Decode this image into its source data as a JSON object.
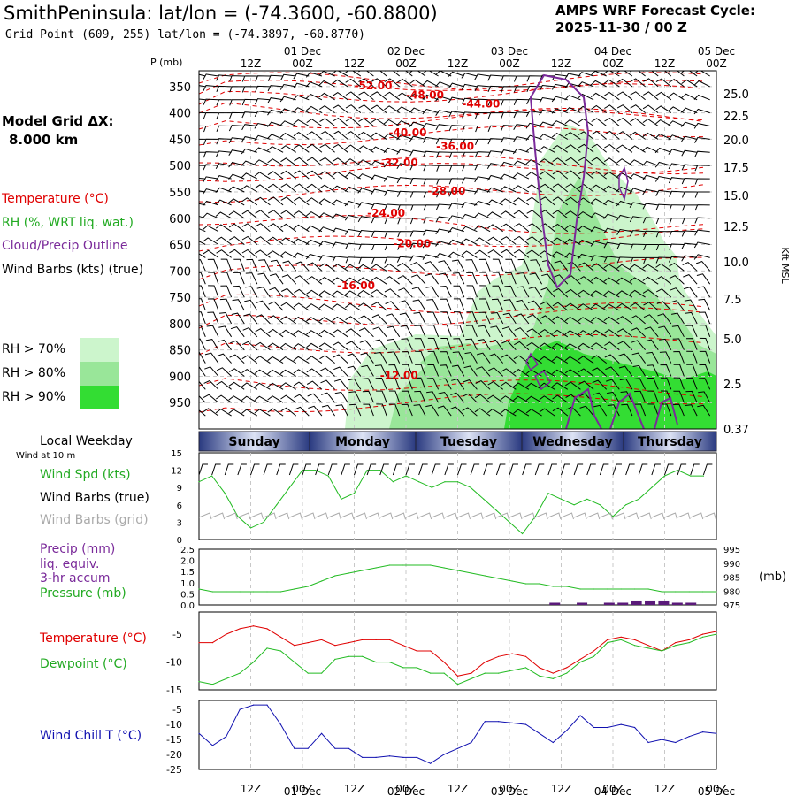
{
  "header": {
    "title": "SmithPeninsula:  lat/lon = (-74.3600, -60.8800)",
    "grid_point": "Grid Point (609, 255) lat/lon = (-74.3897, -60.8770)",
    "cycle_line1": "AMPS WRF Forecast Cycle:",
    "cycle_line2": "2025-11-30 / 00  Z",
    "model_grid": "Model Grid ΔX:",
    "model_dx": "8.000 km"
  },
  "legend": {
    "temperature": "Temperature (°C)",
    "rh": "RH (%, WRT liq. wat.)",
    "cloud": "Cloud/Precip Outline",
    "wind": "Wind Barbs (kts) (true)",
    "rh70": "RH > 70%",
    "rh80": "RH > 80%",
    "rh90": "RH > 90%",
    "local_weekday": "Local Weekday",
    "wind_10m": "Wind at 10 m",
    "wind_spd": "Wind Spd (kts)",
    "wind_barbs_true": "Wind Barbs (true)",
    "wind_barbs_grid": "Wind Barbs (grid)",
    "precip1": "Precip (mm)",
    "precip2": "liq. equiv.",
    "precip3": "3-hr accum",
    "pressure": "Pressure (mb)",
    "temp2": "Temperature (°C)",
    "dewpoint": "Dewpoint (°C)",
    "windchill": "Wind Chill T (°C)"
  },
  "colors": {
    "temperature": "#e00000",
    "rh": "#22aa22",
    "cloud": "#7a2a9a",
    "rh70": "#ccf5cc",
    "rh80": "#99e699",
    "rh90": "#33dd33",
    "windchill": "#1010b0",
    "grid_barb": "#aaaaaa",
    "pressure": "#22bb22",
    "precip": "#5a1a7a",
    "weekday_band": "#4a5aa0"
  },
  "time_axis": {
    "top_labels": [
      "12Z",
      "00Z",
      "12Z",
      "00Z",
      "12Z",
      "00Z",
      "12Z",
      "00Z",
      "12Z",
      "00Z"
    ],
    "top_dates": [
      "01 Dec",
      "02 Dec",
      "03 Dec",
      "04 Dec",
      "05 Dec"
    ],
    "weekdays": [
      "Sunday",
      "Monday",
      "Tuesday",
      "Wednesday",
      "Thursday"
    ]
  },
  "chart_data": [
    {
      "type": "heatmap",
      "title": "Vertical cross-section",
      "ylabel": "P (mb)",
      "y2label": "Kft MSL",
      "pressure_ticks": [
        350,
        400,
        450,
        500,
        550,
        600,
        650,
        700,
        750,
        800,
        850,
        900,
        950
      ],
      "height_ticks": [
        "25.0",
        "22.5",
        "20.0",
        "17.5",
        "15.0",
        "12.5",
        "10.0",
        "7.5",
        "5.0",
        "2.5",
        "0.37"
      ],
      "ylim": [
        1000,
        320
      ],
      "isotherm_labels": [
        {
          "text": "-52.00",
          "t": 36,
          "p": 355
        },
        {
          "text": "-48.00",
          "t": 48,
          "p": 373
        },
        {
          "text": "-44.00",
          "t": 61,
          "p": 390
        },
        {
          "text": "-40.00",
          "t": 44,
          "p": 444
        },
        {
          "text": "-36.00",
          "t": 55,
          "p": 470
        },
        {
          "text": "-32.00",
          "t": 42,
          "p": 501
        },
        {
          "text": "-28.00",
          "t": 53,
          "p": 555
        },
        {
          "text": "-24.00",
          "t": 39,
          "p": 597
        },
        {
          "text": "-20.00",
          "t": 45,
          "p": 655
        },
        {
          "text": "-16.00",
          "t": 32,
          "p": 735
        },
        {
          "text": "-12.00",
          "t": 42,
          "p": 905
        }
      ]
    },
    {
      "type": "line",
      "title": "Wind Speed (kts)",
      "yticks": [
        0,
        3,
        6,
        9,
        12,
        15
      ],
      "ylim": [
        0,
        15
      ],
      "x_hours_step": 3,
      "series": [
        {
          "name": "Wind Spd (kts)",
          "values": [
            10,
            11,
            8,
            4,
            2,
            3,
            6,
            9,
            12,
            12,
            11,
            7,
            8,
            12,
            12,
            10,
            11,
            10,
            9,
            10,
            10,
            9,
            7,
            5,
            3,
            1,
            4,
            8,
            7,
            6,
            7,
            6,
            4,
            6,
            7,
            9,
            11,
            12,
            11,
            11
          ]
        }
      ]
    },
    {
      "type": "line",
      "title": "Precip / Pressure",
      "left_ticks": [
        "2.5",
        "2.0",
        "1.5",
        "1.0",
        "0.5",
        "0.0"
      ],
      "right_ticks": [
        "995",
        "990",
        "985",
        "980",
        "975"
      ],
      "ylim_precip": [
        0,
        2.5
      ],
      "ylim_pressure": [
        975,
        996
      ],
      "series": [
        {
          "name": "Pressure (mb)",
          "values": [
            981,
            980,
            980,
            980,
            980,
            980,
            980,
            981,
            982,
            984,
            986,
            987,
            988,
            989,
            990,
            990,
            990,
            990,
            989,
            988,
            987,
            986,
            985,
            984,
            983,
            983,
            982,
            982,
            981,
            981,
            981,
            981,
            981,
            981,
            980,
            980,
            980,
            980,
            980
          ]
        },
        {
          "name": "Precip (mm)",
          "values": [
            0,
            0,
            0,
            0,
            0,
            0,
            0,
            0,
            0,
            0,
            0,
            0,
            0,
            0,
            0,
            0,
            0,
            0,
            0,
            0,
            0,
            0,
            0,
            0,
            0,
            0,
            0.1,
            0,
            0.1,
            0,
            0.1,
            0.1,
            0.2,
            0.2,
            0.2,
            0.1,
            0.1,
            0,
            0
          ]
        }
      ]
    },
    {
      "type": "line",
      "title": "Temperature / Dewpoint",
      "yticks": [
        -5,
        -10,
        -15
      ],
      "ylim": [
        -15,
        -1
      ],
      "series": [
        {
          "name": "Temperature (°C)",
          "values": [
            -6.5,
            -6.5,
            -5,
            -4,
            -3.5,
            -4,
            -5.5,
            -7,
            -6.5,
            -6,
            -7,
            -6.5,
            -6,
            -6,
            -6,
            -7,
            -8,
            -8,
            -10,
            -12.5,
            -12,
            -10,
            -9,
            -8.5,
            -9,
            -11,
            -12,
            -11,
            -9.5,
            -8,
            -6,
            -5.5,
            -6,
            -7,
            -8,
            -6.5,
            -6,
            -5,
            -4.5
          ]
        },
        {
          "name": "Dewpoint (°C)",
          "values": [
            -13.5,
            -14,
            -13,
            -12,
            -10,
            -7.5,
            -8,
            -10,
            -12,
            -12,
            -9.5,
            -9,
            -9,
            -10,
            -10,
            -11,
            -11,
            -12,
            -12,
            -14,
            -13,
            -12,
            -12,
            -11.5,
            -11,
            -12.5,
            -13,
            -12,
            -10,
            -9,
            -6.5,
            -6,
            -7,
            -7.5,
            -8,
            -7,
            -6.5,
            -5.5,
            -5
          ]
        }
      ]
    },
    {
      "type": "line",
      "title": "Wind Chill T (°C)",
      "yticks": [
        -5,
        -10,
        -15,
        -20,
        -25
      ],
      "ylim": [
        -25,
        -2
      ],
      "series": [
        {
          "name": "Wind Chill T (°C)",
          "values": [
            -13,
            -17,
            -14,
            -5,
            -3.5,
            -3.5,
            -10,
            -18,
            -18,
            -13,
            -18,
            -18,
            -21,
            -21,
            -20.5,
            -21,
            -21,
            -23,
            -20,
            -18,
            -16,
            -9,
            -9,
            -9.5,
            -10,
            -13,
            -16,
            -12,
            -7,
            -11,
            -11,
            -10,
            -11,
            -16,
            -15,
            -16,
            -14,
            -12.5,
            -13
          ]
        }
      ]
    }
  ]
}
